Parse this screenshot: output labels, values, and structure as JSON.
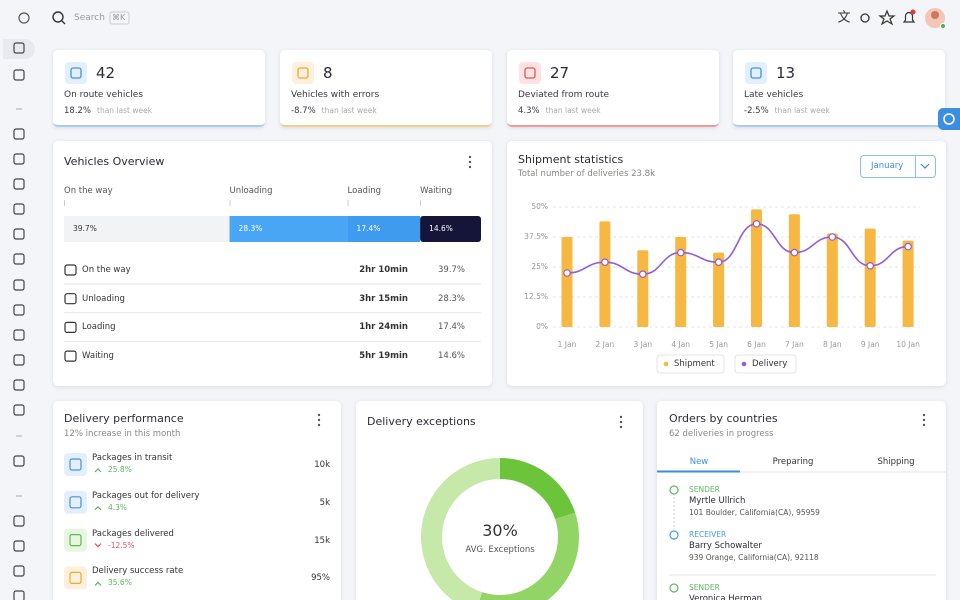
{
  "search": {
    "placeholder": "Search",
    "shortcut": "⌘K"
  },
  "stats": [
    {
      "value": 42,
      "label": "On route vehicles",
      "change": "18.2%",
      "note": "than last week"
    },
    {
      "value": 8,
      "label": "Vehicles with errors",
      "change": "-8.7%",
      "note": "than last week"
    },
    {
      "value": 27,
      "label": "Deviated from route",
      "change": "4.3%",
      "note": "than last week"
    },
    {
      "value": 13,
      "label": "Late vehicles",
      "change": "-2.5%",
      "note": "than last week"
    }
  ],
  "vehicles_overview": {
    "title": "Vehicles Overview",
    "categories": [
      "On the way",
      "Unloading",
      "Loading",
      "Waiting"
    ],
    "values": [
      39.7,
      28.3,
      17.4,
      14.6
    ],
    "value_labels": [
      "39.7%",
      "28.3%",
      "17.4%",
      "14.6%"
    ],
    "times": [
      "2hr 10min",
      "3hr 15min",
      "1hr 24min",
      "5hr 19min"
    ],
    "colors": [
      "#f2f3f5",
      "#48a6f4",
      "#3f9bed",
      "#15153a"
    ]
  },
  "shipment_statistics": {
    "type": "bar",
    "title": "Shipment statistics",
    "subtitle": "Total number of deliveries 23.8k",
    "month": "January",
    "categories": [
      "1 Jan",
      "2 Jan",
      "3 Jan",
      "4 Jan",
      "5 Jan",
      "6 Jan",
      "7 Jan",
      "8 Jan",
      "9 Jan",
      "10 Jan"
    ],
    "series": [
      {
        "name": "Shipment",
        "type": "bar",
        "color": "#f6b843",
        "values": [
          37.5,
          44,
          32,
          37.5,
          31,
          49,
          47,
          39,
          41,
          36
        ]
      },
      {
        "name": "Delivery",
        "type": "line",
        "color": "#8e5fd6",
        "values": [
          22.5,
          27,
          22,
          31,
          27,
          43,
          31,
          37.5,
          25.5,
          33.5
        ]
      }
    ],
    "ylim": [
      0,
      50
    ],
    "yticks": [
      {
        "value": 0,
        "label": "0%"
      },
      {
        "value": 12.5,
        "label": "12.5%"
      },
      {
        "value": 25,
        "label": "25%"
      },
      {
        "value": 37.5,
        "label": "37.5%"
      },
      {
        "value": 50,
        "label": "50%"
      }
    ],
    "grid": true
  },
  "delivery_performance": {
    "title": "Delivery performance",
    "subtitle": "12% increase in this month",
    "items": [
      {
        "name": "Packages in transit",
        "change": "25.8%",
        "value": "10k"
      },
      {
        "name": "Packages out for delivery",
        "change": "4.3%",
        "value": "5k"
      },
      {
        "name": "Packages delivered",
        "change": "-12.5%",
        "value": "15k"
      },
      {
        "name": "Delivery success rate",
        "change": "35.6%",
        "value": "95%"
      }
    ]
  },
  "delivery_exceptions": {
    "type": "donut",
    "title": "Delivery exceptions",
    "values": [
      20,
      35,
      45
    ],
    "colors": [
      "#6cc43a",
      "#92d465",
      "#c6e8a8"
    ],
    "center_value": "30%",
    "center_label": "AVG. Exceptions"
  },
  "orders_by_countries": {
    "title": "Orders by countries",
    "subtitle": "62 deliveries in progress",
    "tabs": [
      "New",
      "Preparing",
      "Shipping"
    ],
    "entries": [
      {
        "role": "SENDER",
        "name": "Myrtle Ullrich",
        "address": "101 Boulder, California(CA), 95959"
      },
      {
        "role": "RECEIVER",
        "name": "Barry Schowalter",
        "address": "939 Orange, California(CA), 92118"
      },
      {
        "role": "SENDER",
        "name": "Veronica Herman"
      }
    ]
  }
}
